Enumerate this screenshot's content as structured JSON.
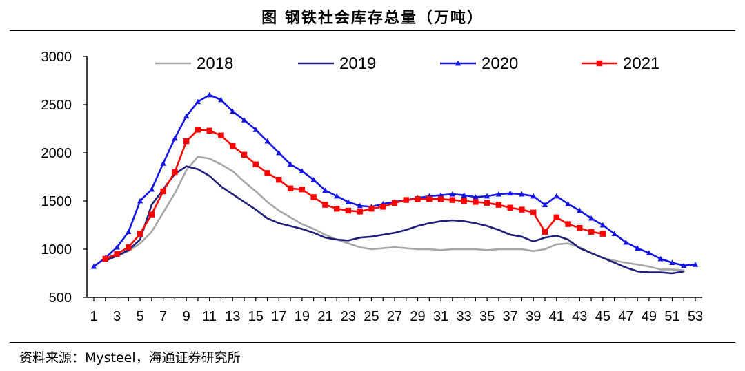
{
  "header": {
    "title": "图  钢铁社会库存总量（万吨）"
  },
  "footer": {
    "source": "资料来源：Mysteel，海通证券研究所"
  },
  "chart_data": {
    "type": "line",
    "title": "图  钢铁社会库存总量（万吨）",
    "xlabel": "",
    "ylabel": "",
    "ylim": [
      500,
      3000
    ],
    "yticks": [
      500,
      1000,
      1500,
      2000,
      2500,
      3000
    ],
    "xlim": [
      1,
      53
    ],
    "xticks": [
      1,
      3,
      5,
      7,
      9,
      11,
      13,
      15,
      17,
      19,
      21,
      23,
      25,
      27,
      29,
      31,
      33,
      35,
      37,
      39,
      41,
      43,
      45,
      47,
      49,
      51,
      53
    ],
    "legend_position": "top",
    "series": [
      {
        "name": "2018",
        "color": "#a6a6a6",
        "marker": "none",
        "x": [
          2,
          3,
          4,
          5,
          6,
          7,
          8,
          9,
          10,
          11,
          12,
          13,
          14,
          15,
          16,
          17,
          18,
          19,
          20,
          21,
          22,
          23,
          24,
          25,
          26,
          27,
          28,
          29,
          30,
          31,
          32,
          33,
          34,
          35,
          36,
          37,
          38,
          39,
          40,
          41,
          42,
          43,
          44,
          45,
          46,
          47,
          48,
          49,
          50,
          51,
          52
        ],
        "values": [
          900,
          930,
          980,
          1060,
          1180,
          1380,
          1580,
          1820,
          1960,
          1940,
          1880,
          1810,
          1700,
          1600,
          1490,
          1400,
          1330,
          1260,
          1210,
          1150,
          1100,
          1060,
          1020,
          1000,
          1010,
          1020,
          1010,
          1000,
          1000,
          990,
          1000,
          1000,
          1000,
          990,
          1000,
          1000,
          1000,
          980,
          1000,
          1050,
          1060,
          1020,
          960,
          910,
          880,
          860,
          840,
          820,
          790,
          790,
          780
        ]
      },
      {
        "name": "2019",
        "color": "#1f1f7a",
        "marker": "none",
        "x": [
          2,
          3,
          4,
          5,
          6,
          7,
          8,
          9,
          10,
          11,
          12,
          13,
          14,
          15,
          16,
          17,
          18,
          19,
          20,
          21,
          22,
          23,
          24,
          25,
          26,
          27,
          28,
          29,
          30,
          31,
          32,
          33,
          34,
          35,
          36,
          37,
          38,
          39,
          40,
          41,
          42,
          43,
          44,
          45,
          46,
          47,
          48,
          49,
          50,
          51,
          52
        ],
        "values": [
          880,
          930,
          990,
          1100,
          1460,
          1620,
          1780,
          1860,
          1830,
          1760,
          1650,
          1570,
          1490,
          1410,
          1320,
          1270,
          1240,
          1210,
          1170,
          1120,
          1100,
          1090,
          1120,
          1130,
          1150,
          1170,
          1200,
          1240,
          1270,
          1290,
          1300,
          1290,
          1270,
          1240,
          1200,
          1150,
          1130,
          1080,
          1120,
          1140,
          1100,
          1010,
          960,
          910,
          860,
          810,
          770,
          760,
          760,
          750,
          770
        ]
      },
      {
        "name": "2020",
        "color": "#1414e6",
        "marker": "triangle",
        "x": [
          1,
          2,
          3,
          4,
          5,
          6,
          7,
          8,
          9,
          10,
          11,
          12,
          13,
          14,
          15,
          16,
          17,
          18,
          19,
          20,
          21,
          22,
          23,
          24,
          25,
          26,
          27,
          28,
          29,
          30,
          31,
          32,
          33,
          34,
          35,
          36,
          37,
          38,
          39,
          40,
          41,
          42,
          43,
          44,
          45,
          46,
          47,
          48,
          49,
          50,
          51,
          52,
          53
        ],
        "values": [
          820,
          910,
          1020,
          1180,
          1500,
          1620,
          1890,
          2150,
          2380,
          2530,
          2600,
          2550,
          2430,
          2340,
          2240,
          2120,
          2000,
          1880,
          1810,
          1720,
          1610,
          1550,
          1490,
          1450,
          1440,
          1470,
          1490,
          1510,
          1530,
          1550,
          1560,
          1570,
          1560,
          1540,
          1550,
          1570,
          1580,
          1570,
          1550,
          1460,
          1550,
          1470,
          1400,
          1320,
          1250,
          1160,
          1070,
          1010,
          960,
          900,
          860,
          830,
          840
        ]
      },
      {
        "name": "2021",
        "color": "#ff0000",
        "marker": "square",
        "x": [
          2,
          3,
          4,
          5,
          6,
          7,
          8,
          9,
          10,
          11,
          12,
          13,
          14,
          15,
          16,
          17,
          18,
          19,
          20,
          21,
          22,
          23,
          24,
          25,
          26,
          27,
          28,
          29,
          30,
          31,
          32,
          33,
          34,
          35,
          36,
          37,
          38,
          39,
          40,
          41,
          42,
          43,
          44,
          45
        ],
        "values": [
          900,
          950,
          1020,
          1160,
          1360,
          1600,
          1800,
          2120,
          2240,
          2230,
          2180,
          2070,
          1980,
          1880,
          1790,
          1720,
          1630,
          1620,
          1540,
          1460,
          1420,
          1400,
          1390,
          1420,
          1440,
          1480,
          1510,
          1520,
          1520,
          1520,
          1510,
          1500,
          1490,
          1480,
          1460,
          1430,
          1410,
          1380,
          1180,
          1330,
          1260,
          1220,
          1180,
          1160
        ]
      }
    ]
  }
}
